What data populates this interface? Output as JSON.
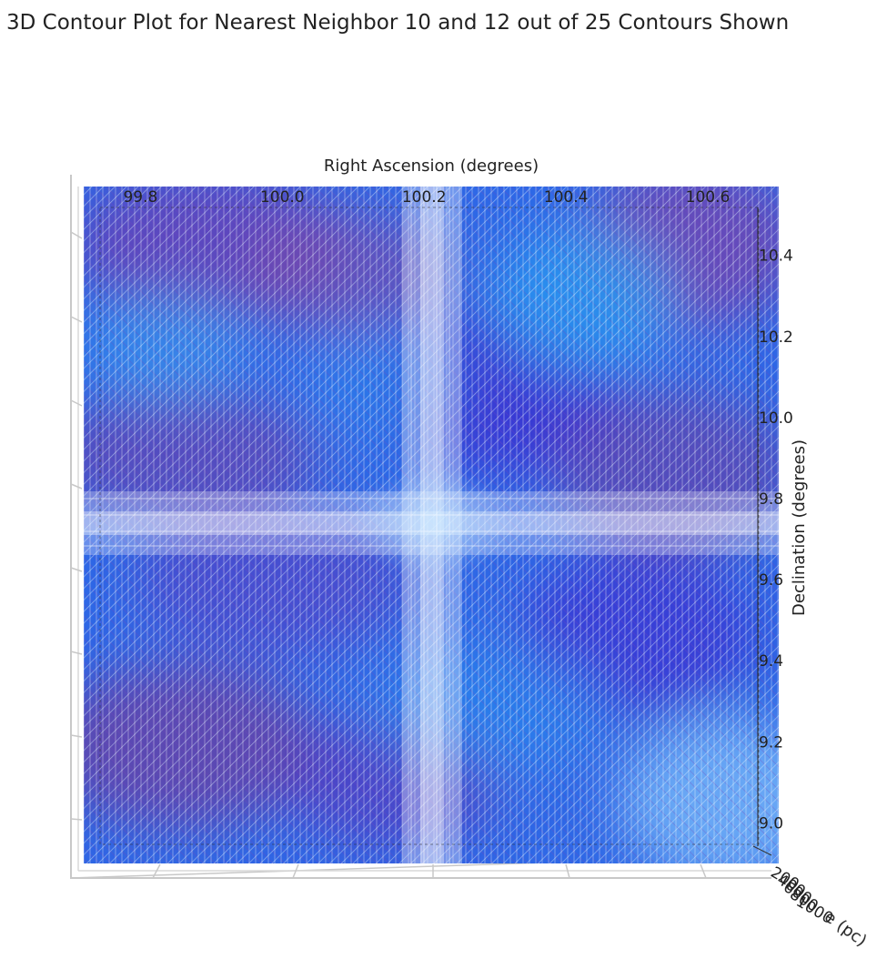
{
  "chart_data": {
    "type": "contour3d",
    "title": "3D Contour Plot for Nearest Neighbor 10 and 12 out of 25 Contours Shown",
    "xlabel": "Right Ascension (degrees)",
    "ylabel": "Declination (degrees)",
    "zlabel": "Distance (pc)",
    "zlabel_visible": "e (pc)",
    "x_ticks": [
      "99.8",
      "100.0",
      "100.2",
      "100.4",
      "100.6"
    ],
    "y_ticks": [
      "10.4",
      "10.2",
      "10.0",
      "9.8",
      "9.6",
      "9.4",
      "9.2",
      "9.0"
    ],
    "z_ticks": [
      "200",
      "400",
      "600",
      "800",
      "1000"
    ],
    "xlim": [
      99.72,
      100.7
    ],
    "ylim": [
      8.9,
      10.57
    ],
    "colors": {
      "background": "#ffffff",
      "light_blue": "#8fd2ff",
      "mid_blue": "#1e78f0",
      "deep_blue": "#2d3cdc",
      "violet": "#6a2ca0",
      "pane_edge": "#bdbdbd"
    }
  }
}
